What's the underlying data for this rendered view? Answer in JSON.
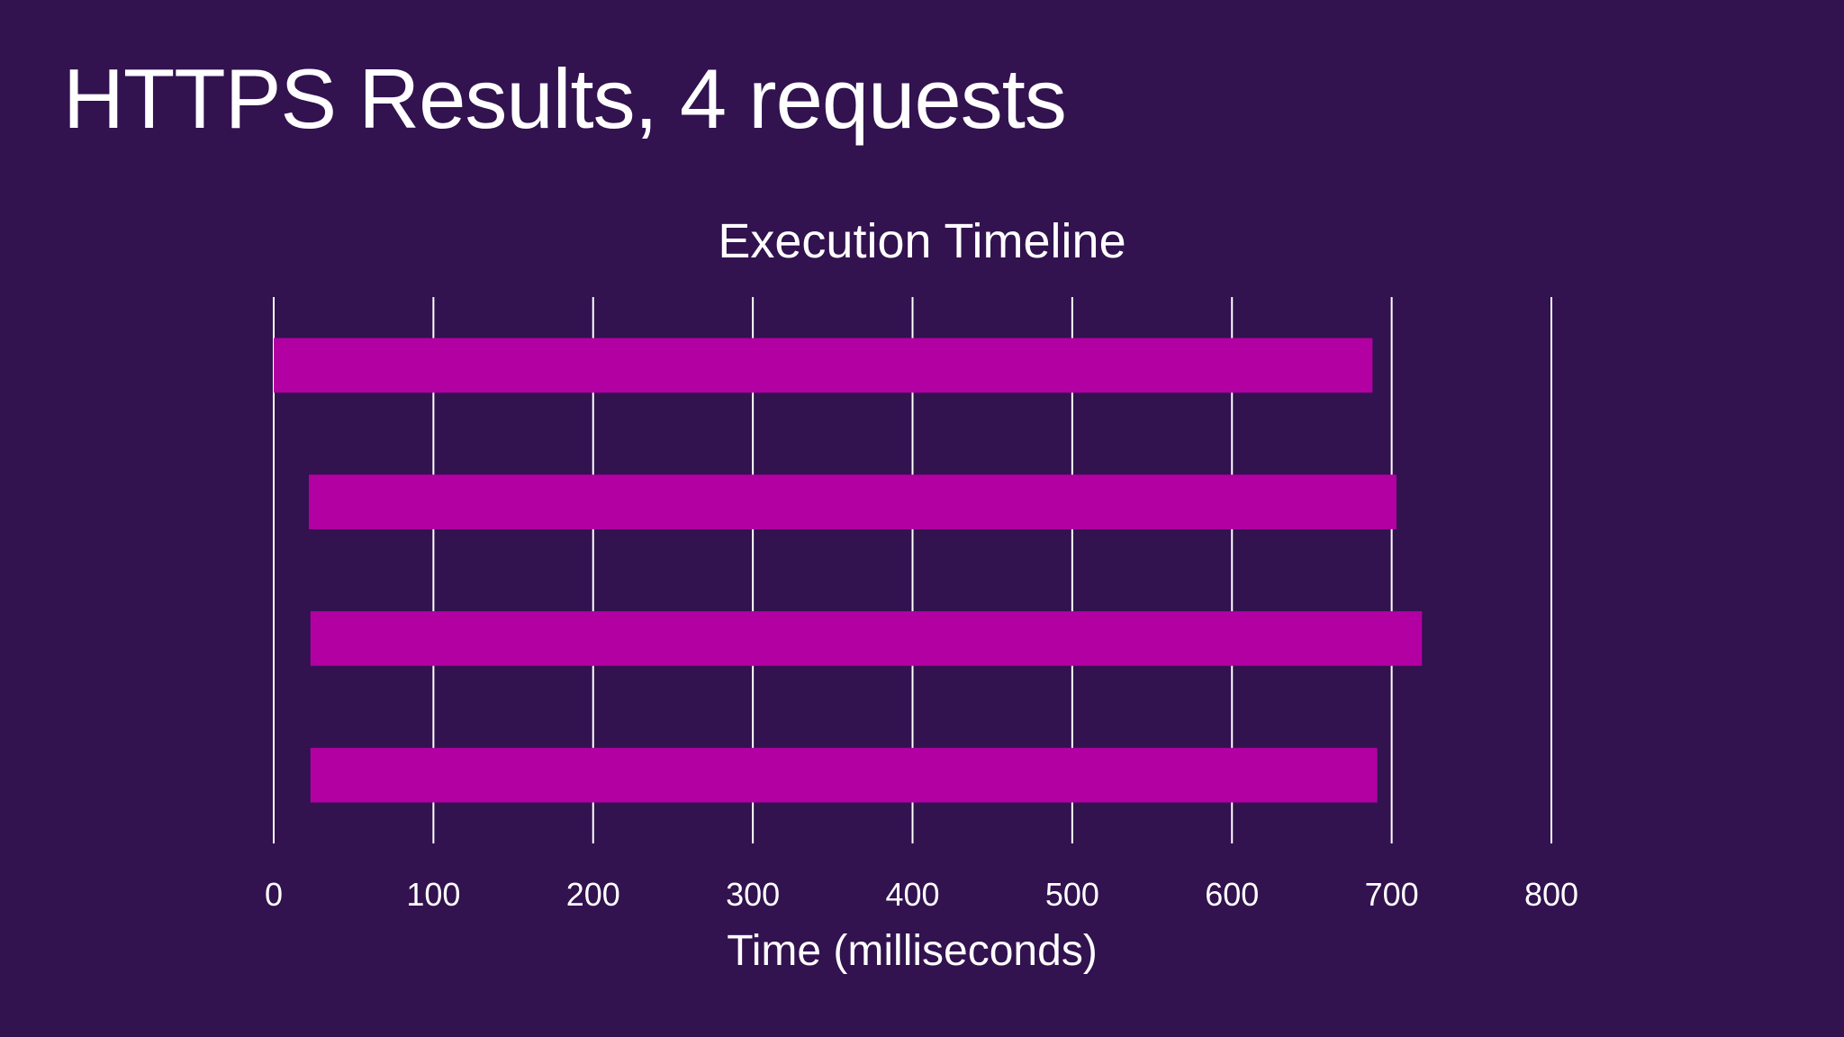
{
  "slide": {
    "title": "HTTPS Results, 4 requests"
  },
  "chart_data": {
    "type": "bar",
    "orientation": "horizontal",
    "title": "Execution Timeline",
    "xlabel": "Time (milliseconds)",
    "ylabel": "",
    "xlim": [
      0,
      800
    ],
    "x_ticks": [
      0,
      100,
      200,
      300,
      400,
      500,
      600,
      700,
      800
    ],
    "x_tick_labels": [
      "0",
      "100",
      "200",
      "300",
      "400",
      "500",
      "600",
      "700",
      "800"
    ],
    "grid": "vertical",
    "legend": "none",
    "bar_color": "#b300a3",
    "background_color": "#32124f",
    "bars": [
      {
        "start": 0,
        "end": 688
      },
      {
        "start": 22,
        "end": 703
      },
      {
        "start": 23,
        "end": 719
      },
      {
        "start": 23,
        "end": 691
      }
    ]
  }
}
